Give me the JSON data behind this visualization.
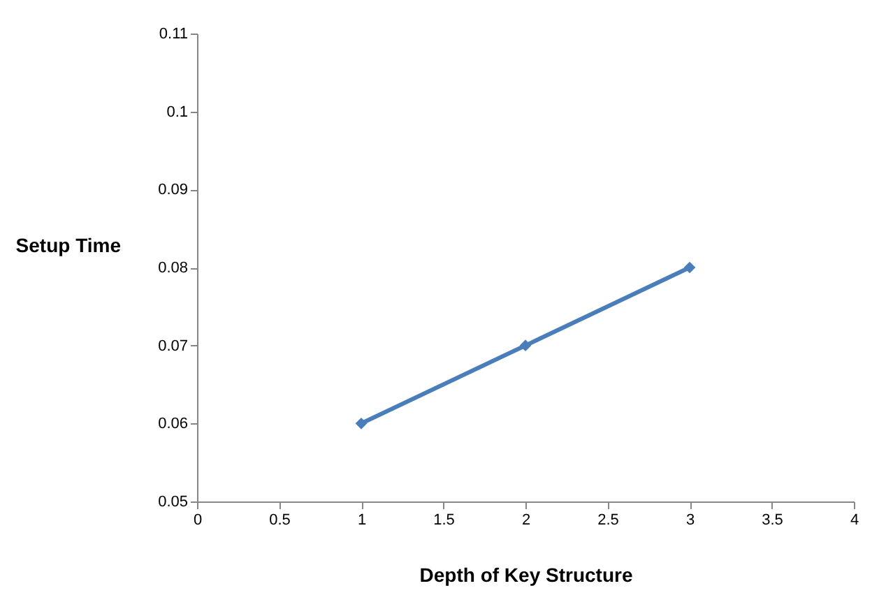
{
  "chart_data": {
    "type": "line",
    "xlabel": "Depth of Key Structure",
    "ylabel": "Setup Time",
    "x": [
      1,
      2,
      3
    ],
    "series": [
      {
        "color": "#4a7ebb",
        "values": [
          0.06,
          0.07,
          0.08
        ]
      }
    ],
    "xlim": [
      0,
      4
    ],
    "xticks": [
      0,
      0.5,
      1,
      1.5,
      2,
      2.5,
      3,
      3.5,
      4
    ],
    "ylim": [
      0.05,
      0.11
    ],
    "yticks": [
      0.05,
      0.06,
      0.07,
      0.08,
      0.09,
      0.1,
      0.11
    ],
    "grid": false,
    "marker": "diamond",
    "line_style": "solid"
  }
}
